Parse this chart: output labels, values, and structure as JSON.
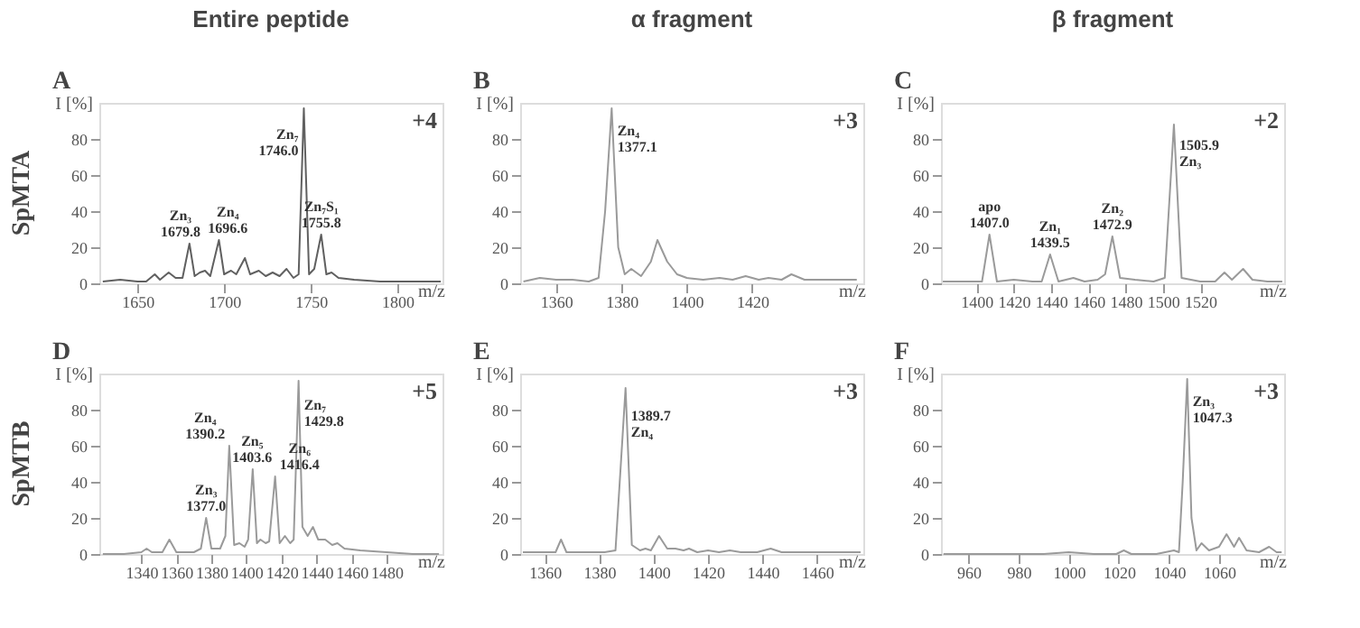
{
  "chart_data": [
    {
      "type": "line",
      "title": "A",
      "subtitle": "Entire peptide",
      "xlabel": "m/z",
      "ylabel": "I [%]",
      "color": "#606060",
      "xlim": [
        1628,
        1826
      ],
      "xticks": [
        1650,
        1700,
        1750,
        1800
      ],
      "ylim": [
        0,
        100
      ],
      "yticks": [
        0,
        20,
        40,
        60,
        80
      ],
      "grid": false,
      "x": [
        1630,
        1640,
        1650,
        1655,
        1660,
        1663,
        1668,
        1672,
        1676,
        1680,
        1683,
        1686,
        1689,
        1692,
        1697,
        1700,
        1704,
        1707,
        1712,
        1715,
        1720,
        1724,
        1728,
        1732,
        1736,
        1740,
        1743,
        1746,
        1749,
        1752,
        1756,
        1759,
        1762,
        1766,
        1775,
        1790,
        1810,
        1825
      ],
      "values": [
        1,
        2,
        1,
        1,
        5,
        2,
        6,
        3,
        3,
        22,
        4,
        6,
        7,
        4,
        24,
        5,
        7,
        5,
        14,
        5,
        7,
        4,
        6,
        4,
        8,
        3,
        5,
        97,
        5,
        8,
        27,
        5,
        6,
        3,
        2,
        1,
        1,
        1
      ],
      "annotations": [
        "+4",
        "SpMTA",
        {
          "text": "Zn₃\n1679.8",
          "x": 1680,
          "y": 22
        },
        {
          "text": "Zn₄\n1696.6",
          "x": 1697,
          "y": 24
        },
        {
          "text": "Zn₇\n1746.0",
          "x": 1746,
          "y": 78
        },
        {
          "text": "Zn₇S₁\n1755.8",
          "x": 1756,
          "y": 27
        }
      ]
    },
    {
      "type": "line",
      "title": "B",
      "subtitle": "α fragment",
      "xlabel": "m/z",
      "ylabel": "I [%]",
      "color": "#9a9a9a",
      "xlim": [
        1349,
        1454
      ],
      "xticks": [
        1360,
        1380,
        1400,
        1420
      ],
      "ylim": [
        0,
        100
      ],
      "yticks": [
        0,
        20,
        40,
        60,
        80
      ],
      "grid": false,
      "x": [
        1350,
        1355,
        1360,
        1365,
        1370,
        1373,
        1375,
        1377,
        1379,
        1381,
        1383,
        1386,
        1389,
        1391,
        1394,
        1397,
        1400,
        1405,
        1410,
        1414,
        1418,
        1422,
        1425,
        1429,
        1432,
        1436,
        1440,
        1446,
        1452
      ],
      "values": [
        1,
        3,
        2,
        2,
        1,
        3,
        40,
        97,
        20,
        5,
        8,
        4,
        12,
        24,
        12,
        5,
        3,
        2,
        3,
        2,
        4,
        2,
        3,
        2,
        5,
        2,
        2,
        2,
        2
      ],
      "annotations": [
        "+3",
        {
          "text": "Zn₄\n1377.1",
          "x": 1377.1,
          "y": 80
        }
      ]
    },
    {
      "type": "line",
      "title": "C",
      "subtitle": "β fragment",
      "xlabel": "m/z",
      "ylabel": "I [%]",
      "color": "#9a9a9a",
      "xlim": [
        1381,
        1565
      ],
      "xticks": [
        1400,
        1420,
        1440,
        1460,
        1480,
        1500,
        1520
      ],
      "ylim": [
        0,
        100
      ],
      "yticks": [
        0,
        20,
        40,
        60,
        80
      ],
      "grid": false,
      "x": [
        1382,
        1395,
        1403,
        1407,
        1411,
        1420,
        1430,
        1435,
        1439.5,
        1444,
        1452,
        1458,
        1465,
        1469,
        1472.9,
        1477,
        1485,
        1495,
        1501,
        1505.9,
        1510,
        1520,
        1528,
        1533,
        1537,
        1543,
        1548,
        1556,
        1564
      ],
      "values": [
        1,
        1,
        1,
        27,
        1,
        2,
        1,
        1,
        16,
        1,
        3,
        1,
        2,
        5,
        26,
        3,
        2,
        1,
        3,
        88,
        3,
        1,
        1,
        6,
        2,
        8,
        2,
        1,
        1
      ],
      "annotations": [
        "+2",
        {
          "text": "apo\n1407.0",
          "x": 1407,
          "y": 27
        },
        {
          "text": "Zn₁\n1439.5",
          "x": 1439.5,
          "y": 16
        },
        {
          "text": "Zn₂\n1472.9",
          "x": 1472.9,
          "y": 26
        },
        {
          "text": "1505.9\nZn₃",
          "x": 1505.9,
          "y": 72
        }
      ]
    },
    {
      "type": "line",
      "title": "D",
      "xlabel": "m/z",
      "ylabel": "I [%]",
      "color": "#9a9a9a",
      "xlim": [
        1316,
        1512
      ],
      "xticks": [
        1340,
        1360,
        1380,
        1400,
        1420,
        1440,
        1460,
        1480
      ],
      "ylim": [
        0,
        100
      ],
      "yticks": [
        0,
        20,
        40,
        60,
        80
      ],
      "grid": false,
      "x": [
        1318,
        1330,
        1340,
        1343,
        1346,
        1352,
        1356,
        1360,
        1370,
        1374,
        1377,
        1380,
        1385,
        1388,
        1390.2,
        1393,
        1396,
        1399,
        1401,
        1403.6,
        1406,
        1408,
        1411,
        1413,
        1416.4,
        1419,
        1422,
        1425,
        1427,
        1429.8,
        1432,
        1435,
        1438,
        1441,
        1445,
        1449,
        1452,
        1456,
        1465,
        1480,
        1495,
        1510
      ],
      "values": [
        0,
        0,
        1,
        3,
        1,
        1,
        8,
        1,
        1,
        3,
        20,
        3,
        3,
        10,
        60,
        5,
        6,
        4,
        8,
        47,
        6,
        8,
        6,
        7,
        43,
        6,
        10,
        6,
        8,
        96,
        15,
        10,
        15,
        8,
        8,
        5,
        6,
        3,
        2,
        1,
        0,
        0
      ],
      "annotations": [
        "+5",
        "SpMTB",
        {
          "text": "Zn₃\n1377.0",
          "x": 1377,
          "y": 20
        },
        {
          "text": "Zn₄\n1390.2",
          "x": 1390.2,
          "y": 60
        },
        {
          "text": "Zn₅\n1403.6",
          "x": 1403.6,
          "y": 47
        },
        {
          "text": "Zn₆\n1416.4",
          "x": 1416.4,
          "y": 43
        },
        {
          "text": "Zn₇\n1429.8",
          "x": 1429.8,
          "y": 78
        }
      ]
    },
    {
      "type": "line",
      "title": "E",
      "xlabel": "m/z",
      "ylabel": "I [%]",
      "color": "#9a9a9a",
      "xlim": [
        1351,
        1477
      ],
      "xticks": [
        1360,
        1380,
        1400,
        1420,
        1440,
        1460
      ],
      "ylim": [
        0,
        100
      ],
      "yticks": [
        0,
        20,
        40,
        60,
        80
      ],
      "grid": false,
      "x": [
        1352,
        1360,
        1364,
        1366,
        1368,
        1375,
        1382,
        1386,
        1389.7,
        1392,
        1395,
        1397,
        1399,
        1402,
        1405,
        1408,
        1411,
        1413,
        1416,
        1420,
        1424,
        1428,
        1432,
        1438,
        1443,
        1447,
        1455,
        1465,
        1476
      ],
      "values": [
        1,
        1,
        1,
        8,
        1,
        1,
        1,
        2,
        92,
        5,
        2,
        3,
        2,
        10,
        3,
        3,
        2,
        3,
        1,
        2,
        1,
        2,
        1,
        1,
        3,
        1,
        1,
        1,
        1
      ],
      "annotations": [
        "+3",
        {
          "text": "1389.7\nZn₄",
          "x": 1389.7,
          "y": 72
        }
      ]
    },
    {
      "type": "line",
      "title": "F",
      "xlabel": "m/z",
      "ylabel": "I [%]",
      "color": "#9a9a9a",
      "xlim": [
        949,
        1086
      ],
      "xticks": [
        960,
        980,
        1000,
        1020,
        1040,
        1060
      ],
      "ylim": [
        0,
        100
      ],
      "yticks": [
        0,
        20,
        40,
        60,
        80
      ],
      "grid": false,
      "x": [
        950,
        970,
        990,
        1000,
        1010,
        1019,
        1022,
        1025,
        1035,
        1042,
        1044,
        1045.5,
        1047.3,
        1049,
        1051,
        1053,
        1056,
        1060,
        1063,
        1066,
        1068,
        1071,
        1076,
        1080,
        1083,
        1085
      ],
      "values": [
        0,
        0,
        0,
        1,
        0,
        0,
        2,
        0,
        0,
        2,
        1,
        40,
        97,
        20,
        2,
        6,
        2,
        4,
        11,
        4,
        9,
        2,
        1,
        4,
        1,
        1
      ],
      "annotations": [
        "+3",
        {
          "text": "Zn₃\n1047.3",
          "x": 1047.3,
          "y": 80
        }
      ]
    }
  ]
}
